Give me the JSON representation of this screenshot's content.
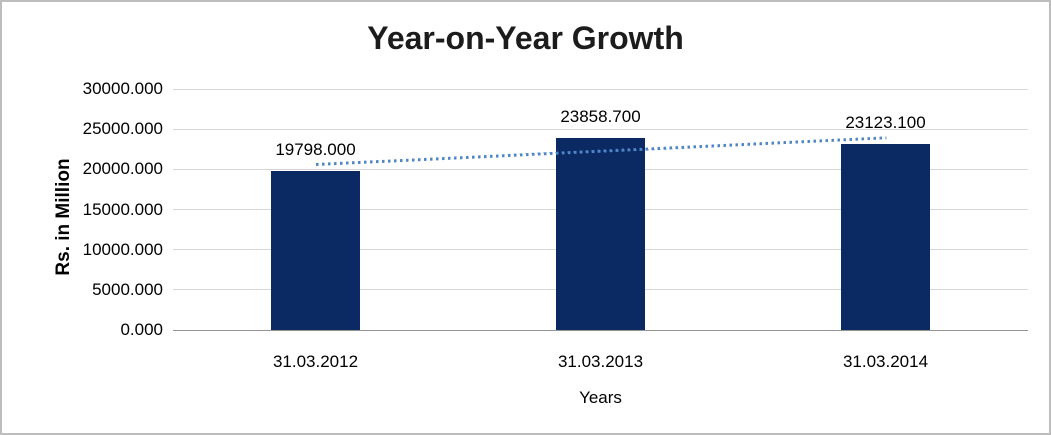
{
  "chart_data": {
    "type": "bar",
    "title": "Year-on-Year Growth",
    "xlabel": "Years",
    "ylabel": "Rs. in Million",
    "categories": [
      "31.03.2012",
      "31.03.2013",
      "31.03.2014"
    ],
    "values": [
      19798.0,
      23858.7,
      23123.1
    ],
    "data_labels": [
      "19798.000",
      "23858.700",
      "23123.100"
    ],
    "y_ticks": [
      "0.000",
      "5000.000",
      "10000.000",
      "15000.000",
      "20000.000",
      "25000.000",
      "30000.000"
    ],
    "ylim": [
      0,
      30000
    ],
    "grid": "horizontal-on",
    "legend": "none",
    "colors": {
      "bar": "#0b2a64",
      "trendline": "#4f86c6"
    },
    "trendline": {
      "type": "linear",
      "style": "dotted",
      "start_value": 20600,
      "end_value": 23920
    }
  }
}
